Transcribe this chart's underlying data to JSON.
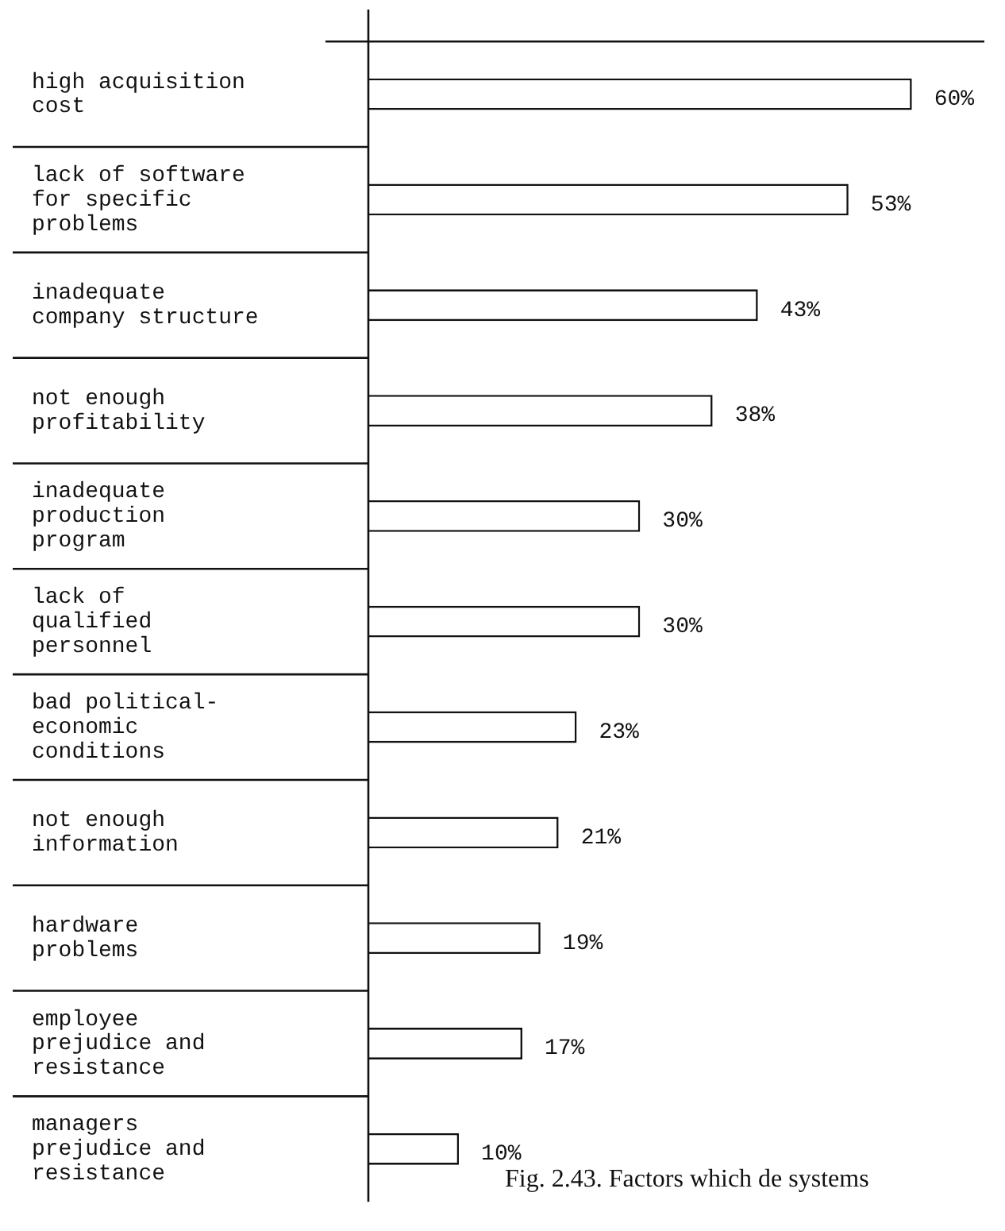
{
  "chart_data": {
    "type": "bar",
    "orientation": "horizontal",
    "categories": [
      "high acquisition\ncost",
      "lack of software\nfor specific\nproblems",
      "inadequate\ncompany structure",
      "not enough\nprofitability",
      "inadequate\nproduction\nprogram",
      "lack of\nqualified\npersonnel",
      "bad political-\neconomic\nconditions",
      "not enough\ninformation",
      "hardware\nproblems",
      "employee\nprejudice and\nresistance",
      "managers\nprejudice and\nresistance"
    ],
    "values": [
      60,
      53,
      43,
      38,
      30,
      30,
      23,
      21,
      19,
      17,
      10
    ],
    "value_labels": [
      "60%",
      "53%",
      "43%",
      "38%",
      "30%",
      "30%",
      "23%",
      "21%",
      "19%",
      "17%",
      "10%"
    ],
    "color": "#ffffff",
    "xlim": [
      0,
      68
    ],
    "grid": false,
    "legend": false,
    "annotations": [
      "Fig. 2.43. Factors which de systems"
    ]
  }
}
